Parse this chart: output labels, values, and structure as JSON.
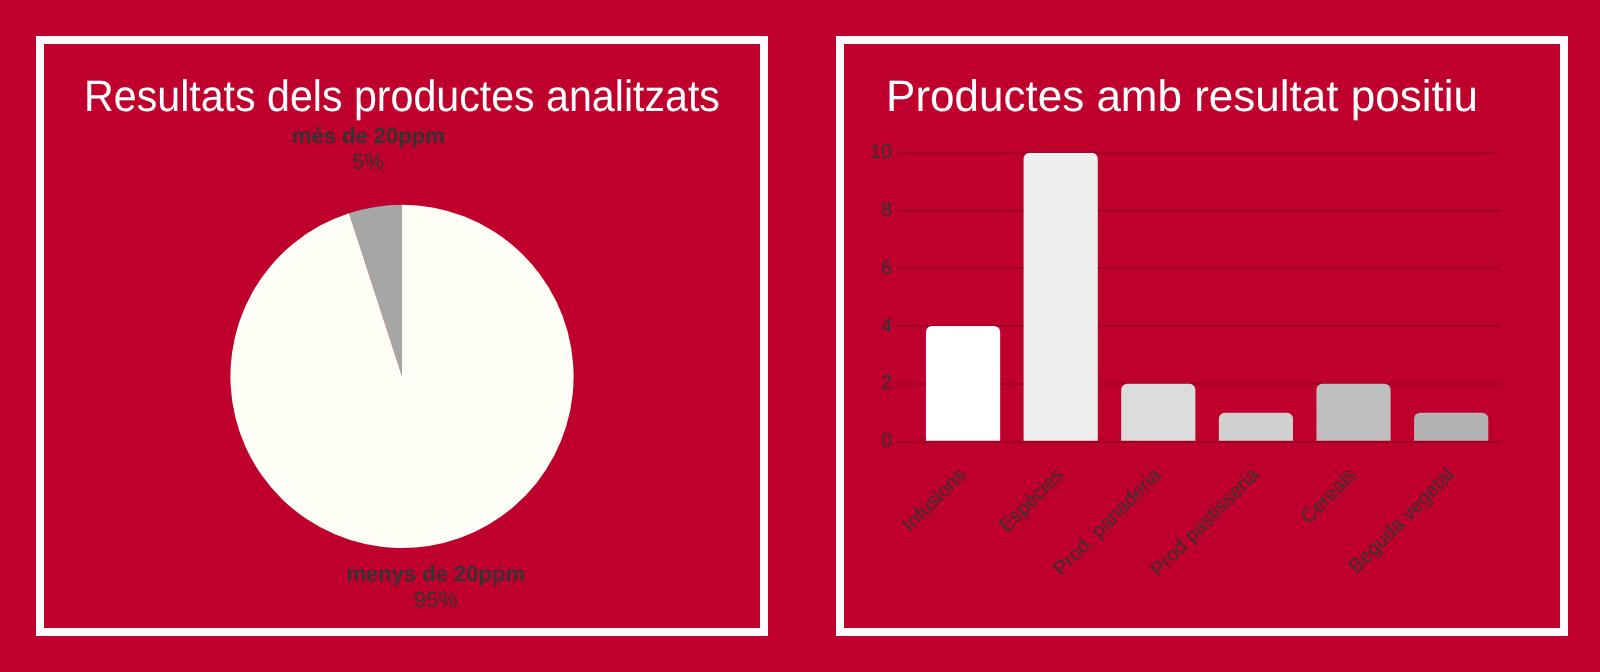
{
  "chart_data": [
    {
      "type": "pie",
      "title": "Resultats dels productes analitzats",
      "categories": [
        "més de 20ppm",
        "menys de 20ppm"
      ],
      "values": [
        5,
        95
      ],
      "value_labels": [
        "5%",
        "95%"
      ],
      "colors": [
        "#a6a6a6",
        "#fffff8"
      ],
      "legend": false
    },
    {
      "type": "bar",
      "title": "Productes amb resultat positiu",
      "categories": [
        "Infusions",
        "Espècies",
        "Prod. panaderia",
        "Prod pastisseria",
        "Cereals",
        "Beguda vegetal"
      ],
      "values": [
        4,
        10,
        2,
        1,
        2,
        1
      ],
      "colors": [
        "#ffffff",
        "#efefef",
        "#dcdcdc",
        "#d0d0d0",
        "#bfbfbf",
        "#b3b3b3"
      ],
      "ylim": [
        0,
        10
      ],
      "yticks": [
        0,
        2,
        4,
        6,
        8,
        10
      ],
      "grid": "y",
      "legend": false
    }
  ]
}
